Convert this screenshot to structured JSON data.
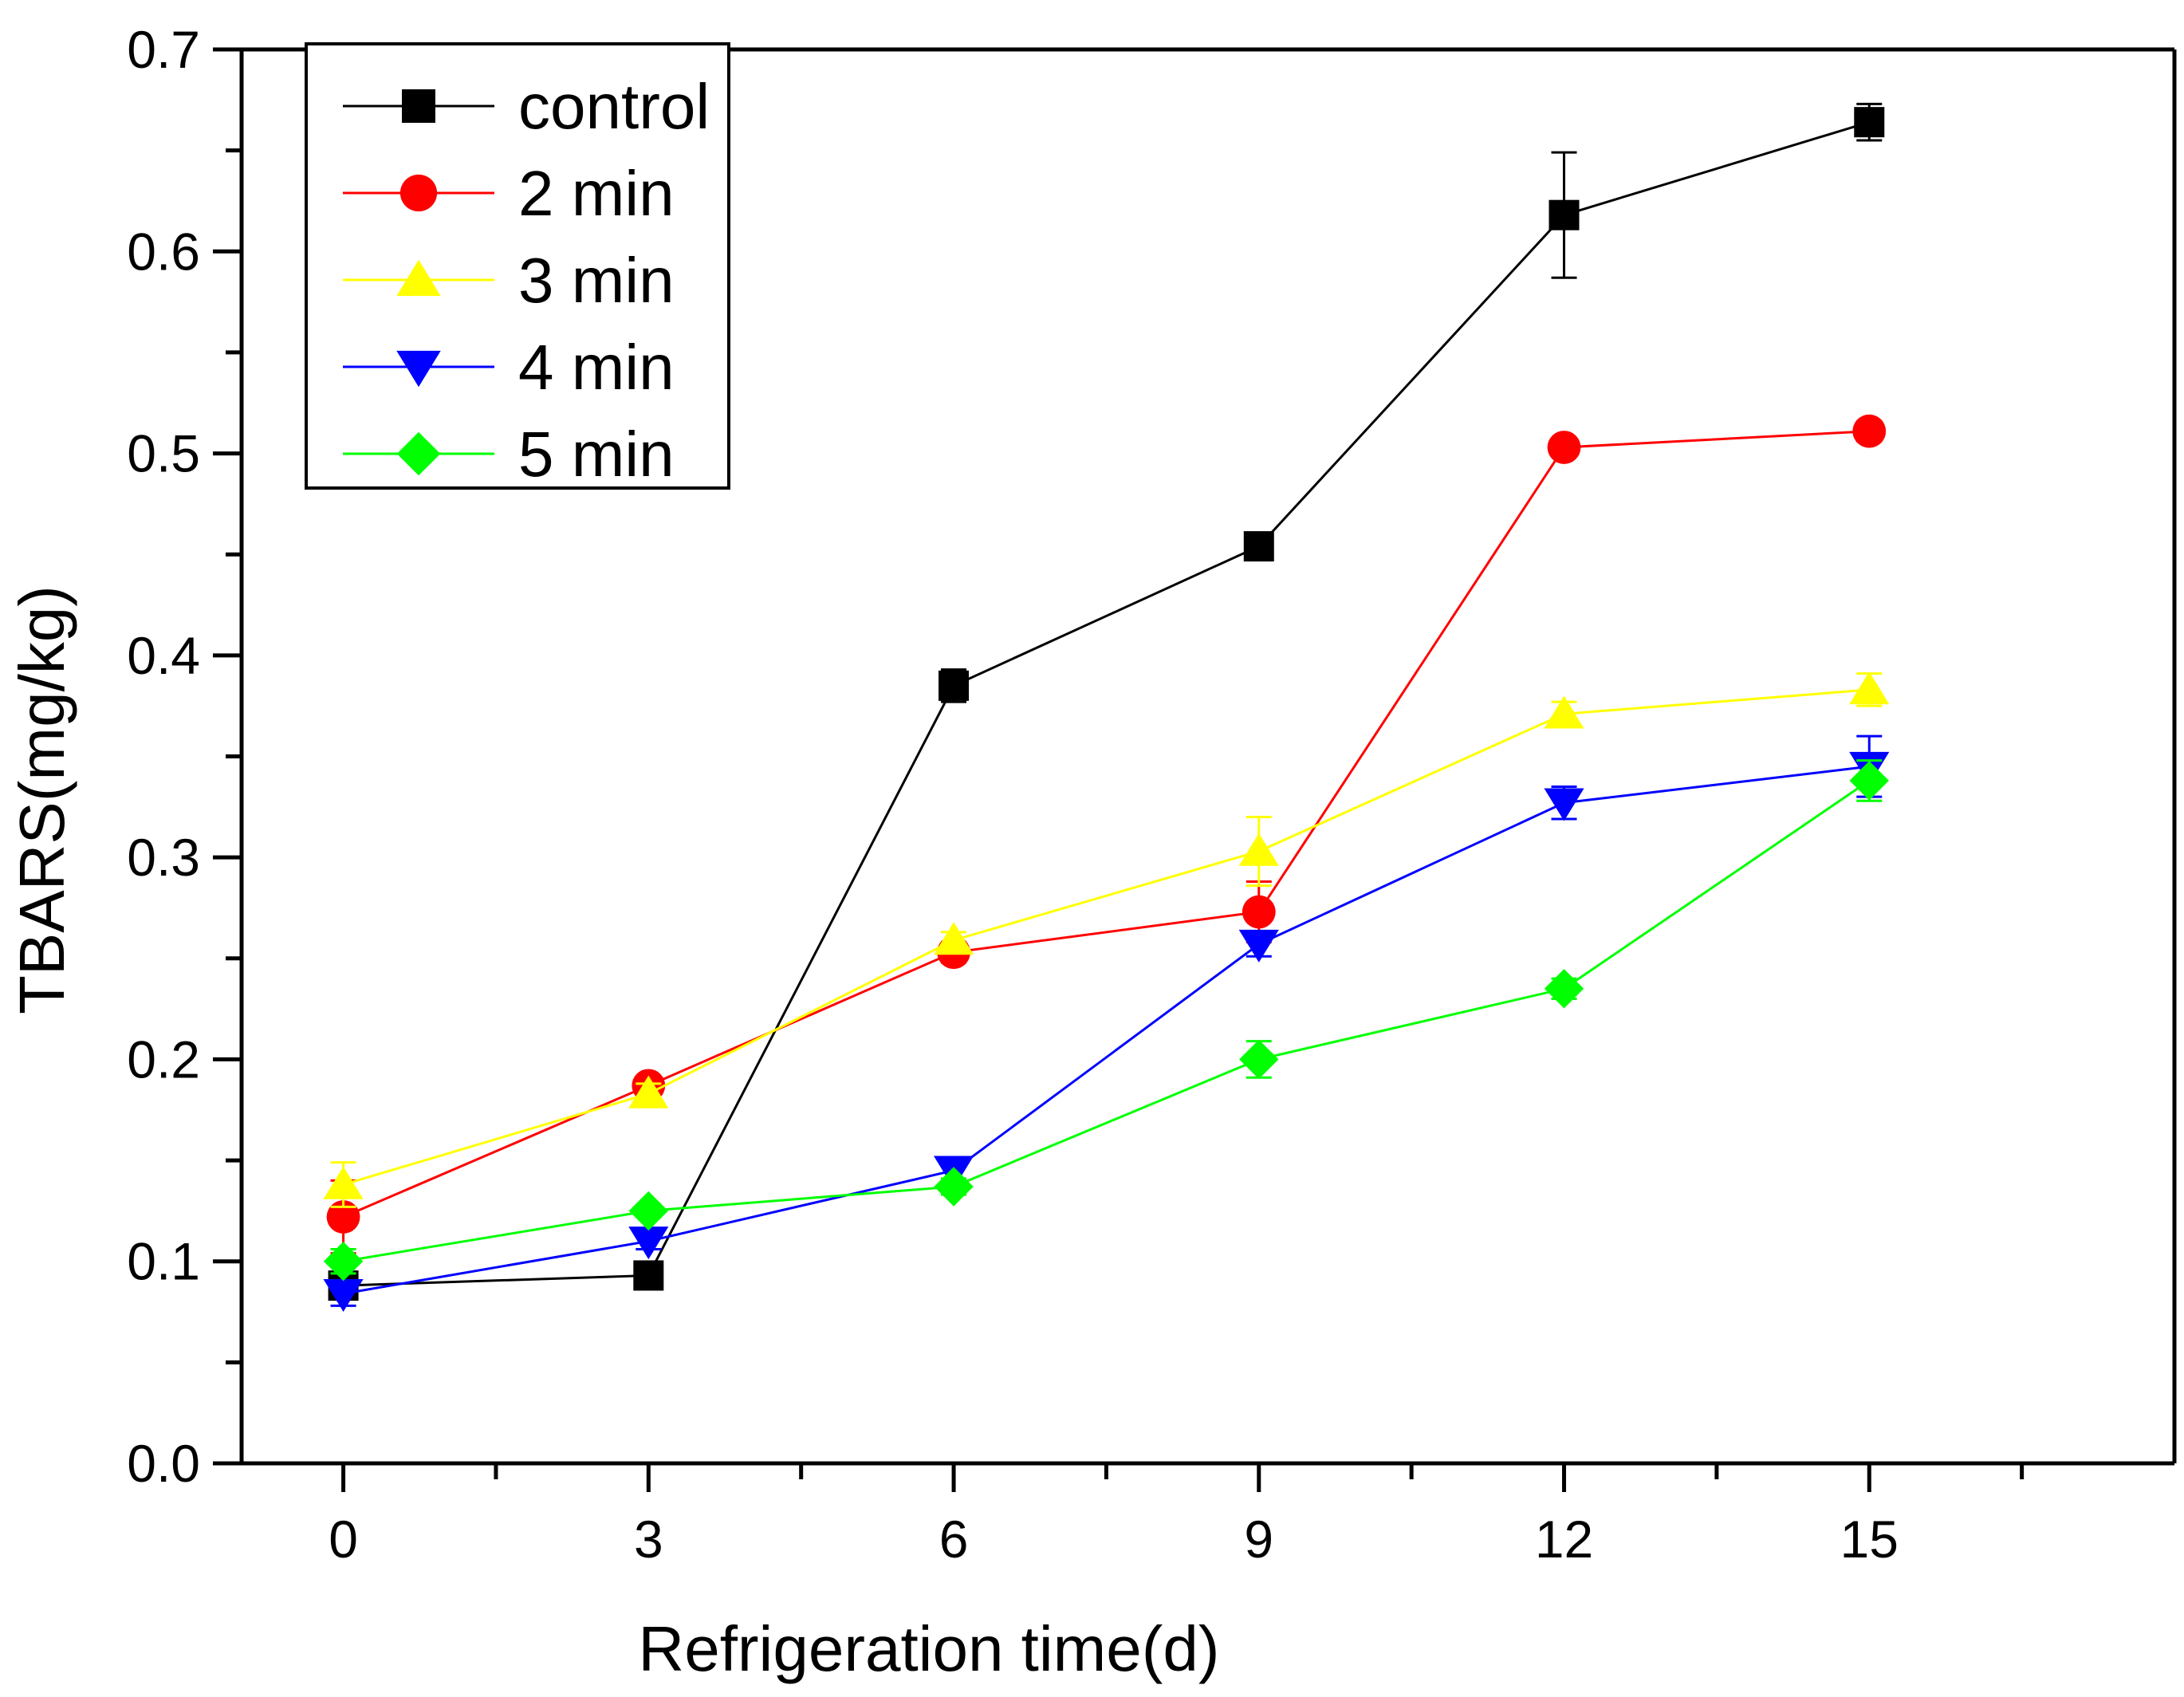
{
  "chart_data": {
    "type": "line",
    "title": "",
    "xlabel": "Refrigeration time(d)",
    "ylabel": "TBARS(mg/kg)",
    "x": [
      0,
      3,
      6,
      9,
      12,
      15
    ],
    "x_ticks": [
      "0",
      "3",
      "6",
      "9",
      "12",
      "15"
    ],
    "xlim": [
      -1,
      18
    ],
    "ylim": [
      0,
      0.7
    ],
    "y_ticks": [
      "0.0",
      "0.1",
      "0.2",
      "0.3",
      "0.4",
      "0.5",
      "0.6",
      "0.7"
    ],
    "grid": false,
    "legend_position": "top-left",
    "series": [
      {
        "name": "control",
        "color": "#000000",
        "marker": "square",
        "values": [
          0.088,
          0.093,
          0.385,
          0.454,
          0.618,
          0.664
        ],
        "errors": [
          0.004,
          0.003,
          0.008,
          0.005,
          0.031,
          0.009
        ]
      },
      {
        "name": "2 min",
        "color": "#ff0000",
        "marker": "circle",
        "values": [
          0.122,
          0.187,
          0.253,
          0.273,
          0.503,
          0.511
        ],
        "errors": [
          0.018,
          0.004,
          0.005,
          0.015,
          0.003,
          0.005
        ]
      },
      {
        "name": "3 min",
        "color": "#ffff00",
        "marker": "triangle-up",
        "values": [
          0.138,
          0.183,
          0.259,
          0.303,
          0.371,
          0.383
        ],
        "errors": [
          0.011,
          0.005,
          0.004,
          0.017,
          0.006,
          0.008
        ]
      },
      {
        "name": "4 min",
        "color": "#0000ff",
        "marker": "triangle-down",
        "values": [
          0.084,
          0.11,
          0.145,
          0.257,
          0.327,
          0.345
        ],
        "errors": [
          0.006,
          0.004,
          0.006,
          0.006,
          0.008,
          0.015
        ]
      },
      {
        "name": "5 min",
        "color": "#00ff00",
        "marker": "diamond",
        "values": [
          0.1,
          0.125,
          0.137,
          0.2,
          0.235,
          0.338
        ],
        "errors": [
          0.006,
          0.003,
          0.004,
          0.009,
          0.005,
          0.01
        ]
      }
    ]
  }
}
